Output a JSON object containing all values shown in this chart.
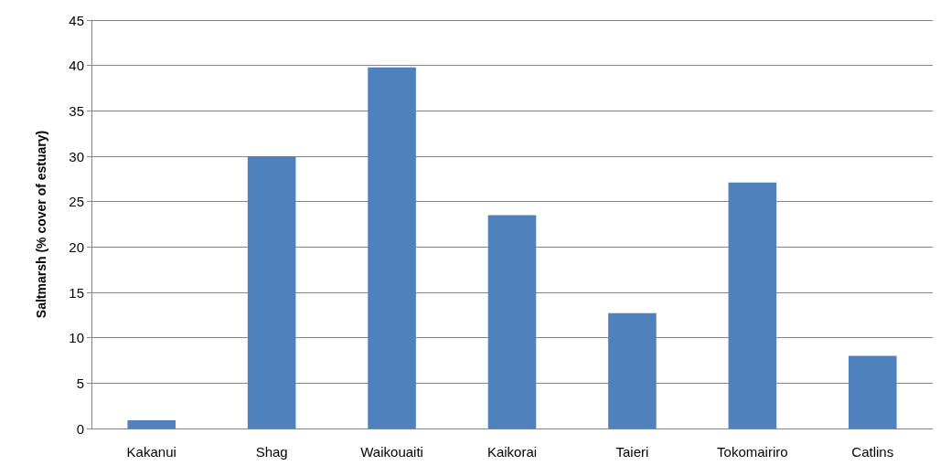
{
  "chart_data": {
    "type": "bar",
    "ylabel": "Saltmarsh (% cover of estuary)",
    "categories": [
      "Kakanui",
      "Shag",
      "Waikouaiti",
      "Kaikorai",
      "Taieri",
      "Tokomairiro",
      "Catlins"
    ],
    "values": [
      0.9,
      30,
      39.8,
      23.5,
      12.7,
      27.1,
      8
    ],
    "color": "#4f81bd",
    "ylim": [
      0,
      45
    ],
    "yticks": [
      0,
      5,
      10,
      15,
      20,
      25,
      30,
      35,
      40,
      45
    ],
    "grid": "y"
  }
}
